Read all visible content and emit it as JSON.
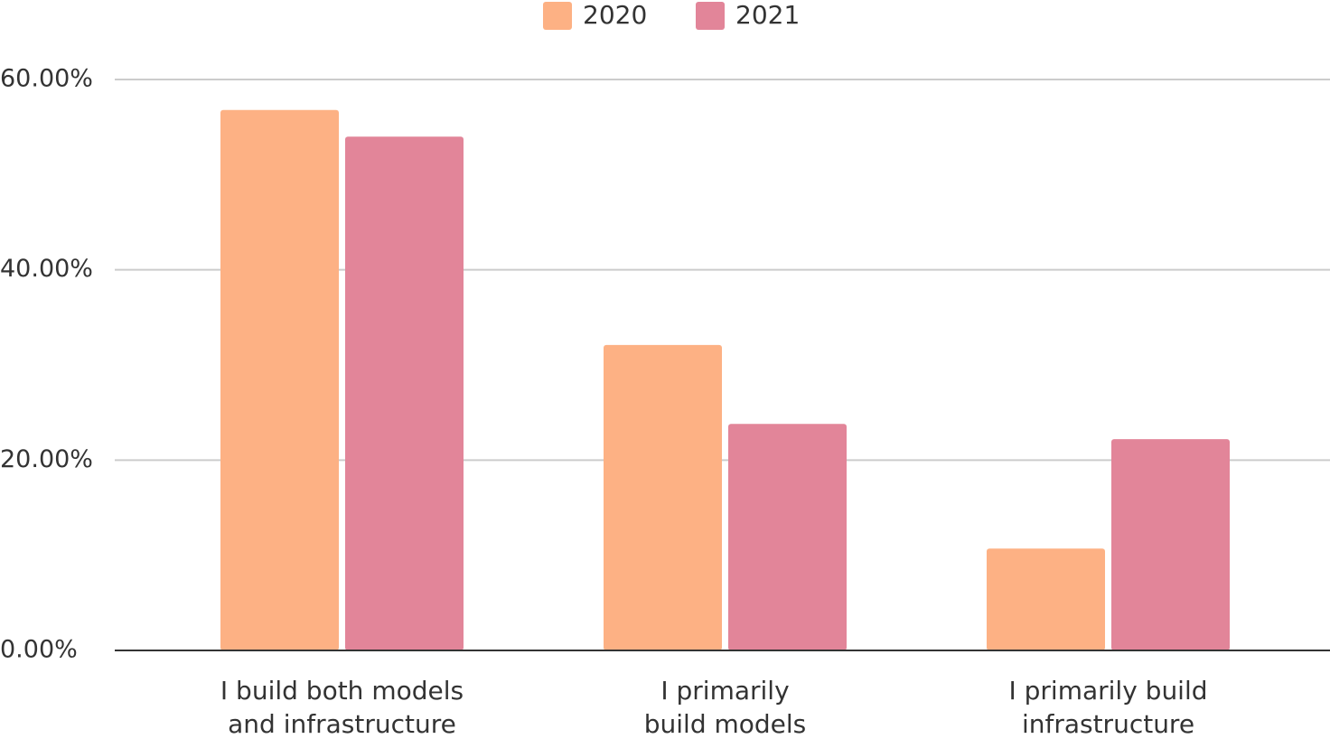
{
  "chart_data": {
    "type": "bar",
    "categories": [
      [
        "I build both models",
        "and infrastructure"
      ],
      [
        "I primarily",
        "build models"
      ],
      [
        "I primarily build",
        "infrastructure"
      ]
    ],
    "series": [
      {
        "name": "2020",
        "color": "#FDB184",
        "values": [
          56.8,
          32.1,
          10.7
        ]
      },
      {
        "name": "2021",
        "color": "#E28599",
        "values": [
          54.0,
          23.8,
          22.2
        ]
      }
    ],
    "yticks": [
      "0.00%",
      "20.00%",
      "40.00%",
      "60.00%"
    ],
    "ytick_values": [
      0,
      20,
      40,
      60
    ],
    "ylim": [
      0,
      60
    ],
    "grid": true,
    "legend_position": "top-center",
    "colors": {
      "grid": "#CCCCCC",
      "axis": "#333333",
      "text": "#333333"
    }
  }
}
